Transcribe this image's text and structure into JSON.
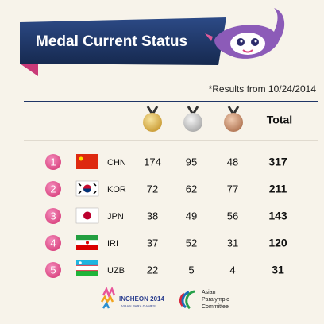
{
  "header": {
    "title": "Medal Current Status",
    "note": "*Results from 10/24/2014"
  },
  "table": {
    "total_header": "Total",
    "rows": [
      [
        1,
        "CHN",
        174,
        95,
        48,
        317
      ],
      [
        2,
        "KOR",
        72,
        62,
        77,
        211
      ],
      [
        3,
        "JPN",
        38,
        49,
        56,
        143
      ],
      [
        4,
        "IRI",
        37,
        52,
        31,
        120
      ],
      [
        5,
        "UZB",
        22,
        5,
        4,
        31
      ]
    ]
  },
  "footer": {
    "games_logo": [
      "INCHEON 2014",
      "ASIAN PARA GAMES"
    ],
    "committee": [
      "Asian",
      "Paralympic",
      "Committee"
    ]
  }
}
